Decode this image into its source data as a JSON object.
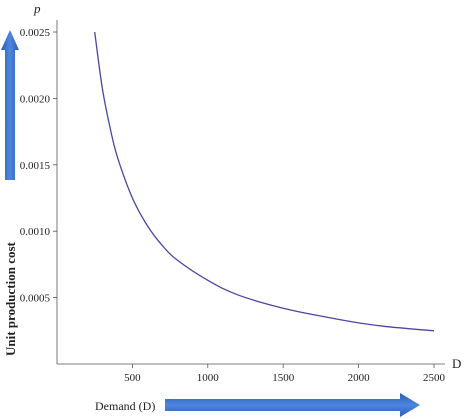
{
  "chart_data": {
    "type": "line",
    "title": "",
    "xlabel": "Demand (D)",
    "ylabel": "Unit production cost",
    "x_axis_symbol": "D",
    "y_axis_symbol": "p",
    "xlim": [
      0,
      2550
    ],
    "ylim": [
      0,
      0.0026
    ],
    "x_ticks": [
      500,
      1000,
      1500,
      2000,
      2500
    ],
    "x_tick_labels": [
      "500",
      "1000",
      "1500",
      "2000",
      "2500"
    ],
    "y_ticks": [
      0.0005,
      0.001,
      0.0015,
      0.002,
      0.0025
    ],
    "y_tick_labels": [
      "0.0005",
      "0.0010",
      "0.0015",
      "0.0020",
      "0.0025"
    ],
    "grid": false,
    "series": [
      {
        "color": "#4a47a3",
        "x": [
          250,
          300,
          350,
          400,
          500,
          600,
          700,
          800,
          1000,
          1200,
          1500,
          1800,
          2000,
          2200,
          2500
        ],
        "y": [
          0.0025,
          0.00208,
          0.00179,
          0.00156,
          0.00125,
          0.00104,
          0.00089,
          0.00078,
          0.00063,
          0.00052,
          0.00042,
          0.00035,
          0.00031,
          0.00028,
          0.00025
        ]
      }
    ],
    "arrow_color": "#3a6fc4"
  }
}
